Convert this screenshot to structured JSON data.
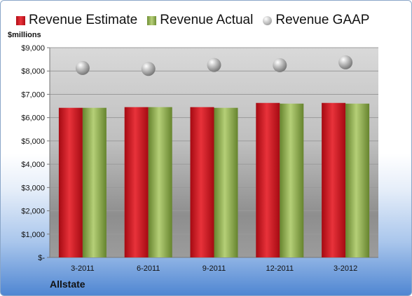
{
  "company": "Allstate",
  "unit_label": "$millions",
  "legend": {
    "estimate": "Revenue Estimate",
    "actual": "Revenue Actual",
    "gaap": "Revenue GAAP"
  },
  "colors": {
    "estimate": "#d41f27",
    "actual": "#9bb85a",
    "gaap": "#b0b0b0"
  },
  "chart_data": {
    "type": "bar",
    "categories": [
      "3-2011",
      "6-2011",
      "9-2011",
      "12-2011",
      "3-2012"
    ],
    "series": [
      {
        "name": "Revenue Estimate",
        "kind": "bar",
        "values": [
          6420,
          6450,
          6450,
          6630,
          6630
        ]
      },
      {
        "name": "Revenue Actual",
        "kind": "bar",
        "values": [
          6420,
          6450,
          6420,
          6600,
          6600
        ]
      },
      {
        "name": "Revenue GAAP",
        "kind": "marker",
        "values": [
          8130,
          8090,
          8260,
          8250,
          8370
        ]
      }
    ],
    "ylim": [
      0,
      9000
    ],
    "yticks": [
      0,
      1000,
      2000,
      3000,
      4000,
      5000,
      6000,
      7000,
      8000,
      9000
    ],
    "ytick_labels": [
      "$-",
      "$1,000",
      "$2,000",
      "$3,000",
      "$4,000",
      "$5,000",
      "$6,000",
      "$7,000",
      "$8,000",
      "$9,000"
    ],
    "grid": true,
    "legend_position": "top"
  }
}
